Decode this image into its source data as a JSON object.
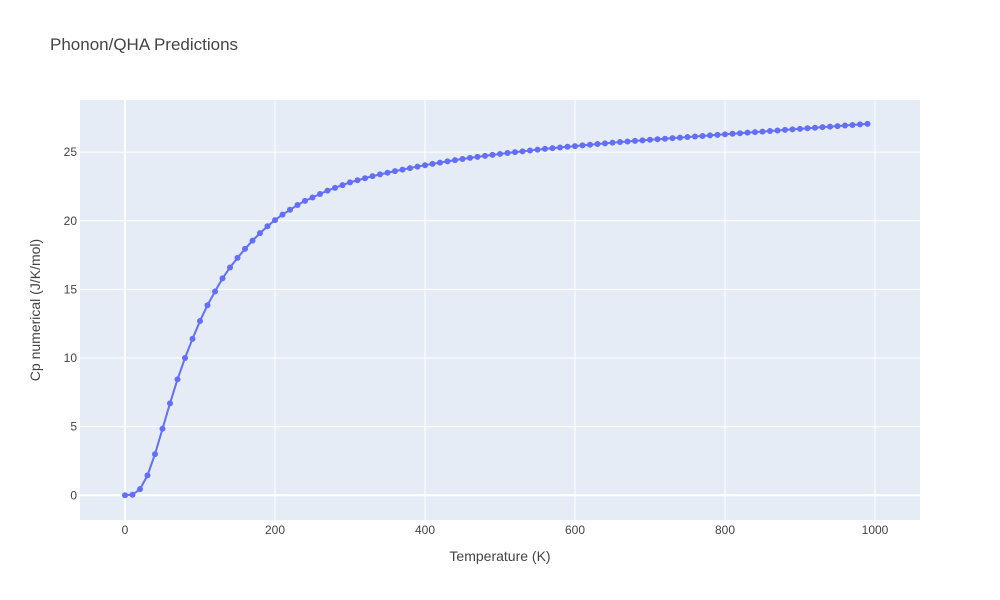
{
  "chart_data": {
    "type": "line",
    "title": "Phonon/QHA Predictions",
    "xlabel": "Temperature (K)",
    "ylabel": "Cp numerical (J/K/mol)",
    "xlim": [
      -60,
      1060
    ],
    "ylim": [
      -1.8,
      28.8
    ],
    "xticks": [
      0,
      200,
      400,
      600,
      800,
      1000
    ],
    "xtick_labels": [
      "0",
      "200",
      "400",
      "600",
      "800",
      "1000"
    ],
    "yticks": [
      0,
      5,
      10,
      15,
      20,
      25
    ],
    "ytick_labels": [
      "0",
      "5",
      "10",
      "15",
      "20",
      "25"
    ],
    "grid": true,
    "colors": {
      "series": "#636efa",
      "plot_bg": "#e5ecf6",
      "grid": "#ffffff",
      "text": "#444444"
    },
    "series": [
      {
        "mode": "lines+markers",
        "x": [
          0,
          10,
          20,
          30,
          40,
          50,
          60,
          70,
          80,
          90,
          100,
          110,
          120,
          130,
          140,
          150,
          160,
          170,
          180,
          190,
          200,
          210,
          220,
          230,
          240,
          250,
          260,
          270,
          280,
          290,
          300,
          310,
          320,
          330,
          340,
          350,
          360,
          370,
          380,
          390,
          400,
          410,
          420,
          430,
          440,
          450,
          460,
          470,
          480,
          490,
          500,
          510,
          520,
          530,
          540,
          550,
          560,
          570,
          580,
          590,
          600,
          610,
          620,
          630,
          640,
          650,
          660,
          670,
          680,
          690,
          700,
          710,
          720,
          730,
          740,
          750,
          760,
          770,
          780,
          790,
          800,
          810,
          820,
          830,
          840,
          850,
          860,
          870,
          880,
          890,
          900,
          910,
          920,
          930,
          940,
          950,
          960,
          970,
          980,
          990
        ],
        "y": [
          0.0,
          0.04,
          0.45,
          1.45,
          3.0,
          4.85,
          6.7,
          8.45,
          10.0,
          11.4,
          12.7,
          13.85,
          14.85,
          15.8,
          16.6,
          17.3,
          17.95,
          18.55,
          19.1,
          19.6,
          20.05,
          20.45,
          20.8,
          21.15,
          21.45,
          21.7,
          21.95,
          22.2,
          22.4,
          22.6,
          22.8,
          22.95,
          23.1,
          23.25,
          23.38,
          23.5,
          23.62,
          23.73,
          23.84,
          23.95,
          24.05,
          24.15,
          24.24,
          24.33,
          24.42,
          24.5,
          24.58,
          24.66,
          24.73,
          24.8,
          24.87,
          24.94,
          25.0,
          25.06,
          25.12,
          25.18,
          25.24,
          25.29,
          25.34,
          25.39,
          25.44,
          25.49,
          25.54,
          25.59,
          25.64,
          25.69,
          25.74,
          25.78,
          25.82,
          25.86,
          25.9,
          25.94,
          25.98,
          26.02,
          26.06,
          26.1,
          26.14,
          26.18,
          26.22,
          26.26,
          26.3,
          26.34,
          26.38,
          26.42,
          26.46,
          26.5,
          26.54,
          26.58,
          26.62,
          26.66,
          26.7,
          26.74,
          26.78,
          26.82,
          26.86,
          26.9,
          26.94,
          26.98,
          27.02,
          27.06
        ]
      }
    ]
  }
}
